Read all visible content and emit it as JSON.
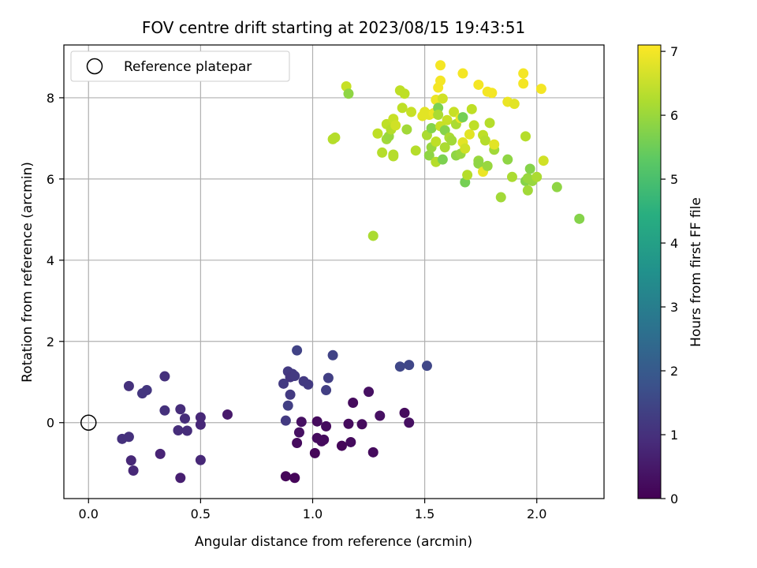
{
  "chart_data": {
    "type": "scatter",
    "title": "FOV centre drift starting at 2023/08/15 19:43:51",
    "xlabel": "Angular distance from reference (arcmin)",
    "ylabel": "Rotation from reference (arcmin)",
    "xlim": [
      -0.11,
      2.3
    ],
    "ylim": [
      -1.87,
      9.3
    ],
    "xticks": [
      0.0,
      0.5,
      1.0,
      1.5,
      2.0
    ],
    "xtick_labels": [
      "0.0",
      "0.5",
      "1.0",
      "1.5",
      "2.0"
    ],
    "yticks": [
      0,
      2,
      4,
      6,
      8
    ],
    "ytick_labels": [
      "0",
      "2",
      "4",
      "6",
      "8"
    ],
    "grid": true,
    "colorbar": {
      "label": "Hours from first FF file",
      "range": [
        0,
        7.1
      ],
      "colormap": "viridis",
      "ticks": [
        0,
        1,
        2,
        3,
        4,
        5,
        6,
        7
      ],
      "tick_labels": [
        "0",
        "1",
        "2",
        "3",
        "4",
        "5",
        "6",
        "7"
      ]
    },
    "legend": {
      "position": "top-left",
      "entries": [
        {
          "label": "Reference platepar",
          "marker": "open-circle"
        }
      ]
    },
    "reference_point": {
      "x": 0.0,
      "y": 0.0
    },
    "points": [
      {
        "x": 0.15,
        "y": -0.4,
        "c": 1.0
      },
      {
        "x": 0.18,
        "y": -0.35,
        "c": 1.0
      },
      {
        "x": 0.19,
        "y": -0.93,
        "c": 0.8
      },
      {
        "x": 0.2,
        "y": -1.18,
        "c": 0.8
      },
      {
        "x": 0.18,
        "y": 0.9,
        "c": 1.0
      },
      {
        "x": 0.24,
        "y": 0.72,
        "c": 1.1
      },
      {
        "x": 0.26,
        "y": 0.8,
        "c": 1.1
      },
      {
        "x": 0.34,
        "y": 1.14,
        "c": 1.0
      },
      {
        "x": 0.34,
        "y": 0.3,
        "c": 1.0
      },
      {
        "x": 0.32,
        "y": -0.77,
        "c": 0.7
      },
      {
        "x": 0.4,
        "y": -0.19,
        "c": 0.9
      },
      {
        "x": 0.41,
        "y": 0.33,
        "c": 0.9
      },
      {
        "x": 0.43,
        "y": 0.1,
        "c": 0.9
      },
      {
        "x": 0.44,
        "y": -0.2,
        "c": 0.9
      },
      {
        "x": 0.41,
        "y": -1.36,
        "c": 0.6
      },
      {
        "x": 0.5,
        "y": 0.13,
        "c": 0.8
      },
      {
        "x": 0.5,
        "y": -0.05,
        "c": 0.8
      },
      {
        "x": 0.5,
        "y": -0.92,
        "c": 0.8
      },
      {
        "x": 0.62,
        "y": 0.2,
        "c": 0.5
      },
      {
        "x": 0.87,
        "y": 0.96,
        "c": 1.2
      },
      {
        "x": 0.89,
        "y": 1.26,
        "c": 1.2
      },
      {
        "x": 0.91,
        "y": 1.2,
        "c": 1.2
      },
      {
        "x": 0.9,
        "y": 1.12,
        "c": 1.1
      },
      {
        "x": 0.92,
        "y": 1.15,
        "c": 1.2
      },
      {
        "x": 0.93,
        "y": 1.78,
        "c": 1.4
      },
      {
        "x": 0.96,
        "y": 1.02,
        "c": 1.2
      },
      {
        "x": 0.98,
        "y": 0.94,
        "c": 1.2
      },
      {
        "x": 0.9,
        "y": 0.69,
        "c": 1.2
      },
      {
        "x": 0.89,
        "y": 0.42,
        "c": 1.3
      },
      {
        "x": 0.88,
        "y": 0.05,
        "c": 1.2
      },
      {
        "x": 1.06,
        "y": 0.8,
        "c": 1.3
      },
      {
        "x": 1.07,
        "y": 1.1,
        "c": 1.3
      },
      {
        "x": 1.09,
        "y": 1.66,
        "c": 1.4
      },
      {
        "x": 0.88,
        "y": -1.32,
        "c": 0.1
      },
      {
        "x": 0.92,
        "y": -1.36,
        "c": 0.1
      },
      {
        "x": 0.93,
        "y": -0.5,
        "c": 0.2
      },
      {
        "x": 0.94,
        "y": -0.24,
        "c": 0.3
      },
      {
        "x": 0.95,
        "y": 0.02,
        "c": 0.3
      },
      {
        "x": 1.01,
        "y": -0.75,
        "c": 0.1
      },
      {
        "x": 1.02,
        "y": 0.03,
        "c": 0.2
      },
      {
        "x": 1.02,
        "y": -0.38,
        "c": 0.2
      },
      {
        "x": 1.04,
        "y": -0.46,
        "c": 0.2
      },
      {
        "x": 1.05,
        "y": -0.42,
        "c": 0.2
      },
      {
        "x": 1.06,
        "y": -0.09,
        "c": 0.2
      },
      {
        "x": 1.13,
        "y": -0.57,
        "c": 0.1
      },
      {
        "x": 1.16,
        "y": -0.03,
        "c": 0.2
      },
      {
        "x": 1.17,
        "y": -0.48,
        "c": 0.2
      },
      {
        "x": 1.18,
        "y": 0.49,
        "c": 0.2
      },
      {
        "x": 1.22,
        "y": -0.04,
        "c": 0.2
      },
      {
        "x": 1.25,
        "y": 0.76,
        "c": 0.3
      },
      {
        "x": 1.27,
        "y": -0.73,
        "c": 0.2
      },
      {
        "x": 1.3,
        "y": 0.17,
        "c": 0.3
      },
      {
        "x": 1.41,
        "y": 0.24,
        "c": 0.2
      },
      {
        "x": 1.43,
        "y": 0.0,
        "c": 0.3
      },
      {
        "x": 1.39,
        "y": 1.38,
        "c": 1.5
      },
      {
        "x": 1.43,
        "y": 1.42,
        "c": 1.5
      },
      {
        "x": 1.51,
        "y": 1.4,
        "c": 1.5
      },
      {
        "x": 1.09,
        "y": 6.98,
        "c": 6.3
      },
      {
        "x": 1.1,
        "y": 7.02,
        "c": 6.3
      },
      {
        "x": 1.15,
        "y": 8.28,
        "c": 6.5
      },
      {
        "x": 1.16,
        "y": 8.1,
        "c": 5.9
      },
      {
        "x": 1.27,
        "y": 4.6,
        "c": 6.2
      },
      {
        "x": 1.29,
        "y": 7.12,
        "c": 6.4
      },
      {
        "x": 1.31,
        "y": 6.65,
        "c": 6.3
      },
      {
        "x": 1.33,
        "y": 7.35,
        "c": 6.4
      },
      {
        "x": 1.33,
        "y": 6.98,
        "c": 6.1
      },
      {
        "x": 1.34,
        "y": 7.05,
        "c": 6.0
      },
      {
        "x": 1.35,
        "y": 7.22,
        "c": 6.3
      },
      {
        "x": 1.36,
        "y": 7.48,
        "c": 6.5
      },
      {
        "x": 1.36,
        "y": 6.56,
        "c": 6.3
      },
      {
        "x": 1.36,
        "y": 6.6,
        "c": 6.3
      },
      {
        "x": 1.37,
        "y": 7.32,
        "c": 6.6
      },
      {
        "x": 1.39,
        "y": 8.18,
        "c": 6.4
      },
      {
        "x": 1.4,
        "y": 7.75,
        "c": 6.4
      },
      {
        "x": 1.41,
        "y": 8.1,
        "c": 6.4
      },
      {
        "x": 1.42,
        "y": 7.22,
        "c": 6.1
      },
      {
        "x": 1.44,
        "y": 7.65,
        "c": 6.5
      },
      {
        "x": 1.46,
        "y": 6.7,
        "c": 6.3
      },
      {
        "x": 1.49,
        "y": 7.55,
        "c": 6.8
      },
      {
        "x": 1.5,
        "y": 7.65,
        "c": 6.8
      },
      {
        "x": 1.51,
        "y": 7.08,
        "c": 6.2
      },
      {
        "x": 1.52,
        "y": 6.58,
        "c": 5.9
      },
      {
        "x": 1.52,
        "y": 7.58,
        "c": 6.8
      },
      {
        "x": 1.53,
        "y": 7.25,
        "c": 5.8
      },
      {
        "x": 1.53,
        "y": 6.78,
        "c": 6.0
      },
      {
        "x": 1.54,
        "y": 7.62,
        "c": 6.9
      },
      {
        "x": 1.55,
        "y": 7.95,
        "c": 6.9
      },
      {
        "x": 1.55,
        "y": 6.42,
        "c": 6.3
      },
      {
        "x": 1.55,
        "y": 6.92,
        "c": 6.4
      },
      {
        "x": 1.56,
        "y": 7.75,
        "c": 5.7
      },
      {
        "x": 1.56,
        "y": 7.58,
        "c": 6.2
      },
      {
        "x": 1.56,
        "y": 8.25,
        "c": 7.0
      },
      {
        "x": 1.57,
        "y": 8.42,
        "c": 7.0
      },
      {
        "x": 1.57,
        "y": 8.8,
        "c": 7.0
      },
      {
        "x": 1.57,
        "y": 7.3,
        "c": 6.5
      },
      {
        "x": 1.58,
        "y": 6.48,
        "c": 5.7
      },
      {
        "x": 1.58,
        "y": 7.98,
        "c": 6.6
      },
      {
        "x": 1.59,
        "y": 6.78,
        "c": 6.2
      },
      {
        "x": 1.59,
        "y": 7.2,
        "c": 5.8
      },
      {
        "x": 1.6,
        "y": 7.45,
        "c": 6.5
      },
      {
        "x": 1.61,
        "y": 7.02,
        "c": 6.2
      },
      {
        "x": 1.62,
        "y": 6.95,
        "c": 6.1
      },
      {
        "x": 1.63,
        "y": 7.65,
        "c": 6.5
      },
      {
        "x": 1.64,
        "y": 7.35,
        "c": 6.2
      },
      {
        "x": 1.64,
        "y": 6.58,
        "c": 5.9
      },
      {
        "x": 1.66,
        "y": 7.5,
        "c": 6.9
      },
      {
        "x": 1.66,
        "y": 6.62,
        "c": 6.0
      },
      {
        "x": 1.67,
        "y": 7.52,
        "c": 5.6
      },
      {
        "x": 1.67,
        "y": 6.9,
        "c": 6.8
      },
      {
        "x": 1.67,
        "y": 8.6,
        "c": 7.0
      },
      {
        "x": 1.68,
        "y": 6.75,
        "c": 6.6
      },
      {
        "x": 1.68,
        "y": 5.92,
        "c": 5.6
      },
      {
        "x": 1.69,
        "y": 6.1,
        "c": 6.3
      },
      {
        "x": 1.7,
        "y": 7.1,
        "c": 6.8
      },
      {
        "x": 1.71,
        "y": 7.72,
        "c": 6.4
      },
      {
        "x": 1.72,
        "y": 7.32,
        "c": 6.4
      },
      {
        "x": 1.74,
        "y": 8.32,
        "c": 7.0
      },
      {
        "x": 1.74,
        "y": 6.45,
        "c": 6.0
      },
      {
        "x": 1.74,
        "y": 6.38,
        "c": 5.9
      },
      {
        "x": 1.76,
        "y": 6.18,
        "c": 6.9
      },
      {
        "x": 1.76,
        "y": 7.08,
        "c": 6.4
      },
      {
        "x": 1.77,
        "y": 6.95,
        "c": 6.3
      },
      {
        "x": 1.78,
        "y": 8.15,
        "c": 7.0
      },
      {
        "x": 1.78,
        "y": 6.32,
        "c": 6.0
      },
      {
        "x": 1.79,
        "y": 7.38,
        "c": 6.3
      },
      {
        "x": 1.8,
        "y": 8.12,
        "c": 7.0
      },
      {
        "x": 1.81,
        "y": 6.72,
        "c": 6.1
      },
      {
        "x": 1.81,
        "y": 6.85,
        "c": 6.8
      },
      {
        "x": 1.84,
        "y": 5.55,
        "c": 6.1
      },
      {
        "x": 1.87,
        "y": 7.9,
        "c": 6.9
      },
      {
        "x": 1.87,
        "y": 6.48,
        "c": 5.9
      },
      {
        "x": 1.89,
        "y": 6.05,
        "c": 6.2
      },
      {
        "x": 1.9,
        "y": 7.85,
        "c": 6.8
      },
      {
        "x": 1.94,
        "y": 8.6,
        "c": 7.0
      },
      {
        "x": 1.94,
        "y": 8.35,
        "c": 7.0
      },
      {
        "x": 1.95,
        "y": 7.05,
        "c": 6.3
      },
      {
        "x": 1.95,
        "y": 5.95,
        "c": 5.8
      },
      {
        "x": 1.96,
        "y": 5.72,
        "c": 6.1
      },
      {
        "x": 1.96,
        "y": 6.02,
        "c": 6.0
      },
      {
        "x": 1.97,
        "y": 6.25,
        "c": 5.8
      },
      {
        "x": 1.98,
        "y": 5.95,
        "c": 6.0
      },
      {
        "x": 2.0,
        "y": 6.05,
        "c": 6.2
      },
      {
        "x": 2.02,
        "y": 8.22,
        "c": 7.0
      },
      {
        "x": 2.03,
        "y": 6.45,
        "c": 6.6
      },
      {
        "x": 2.09,
        "y": 5.8,
        "c": 5.9
      },
      {
        "x": 2.19,
        "y": 5.02,
        "c": 5.8
      }
    ]
  }
}
